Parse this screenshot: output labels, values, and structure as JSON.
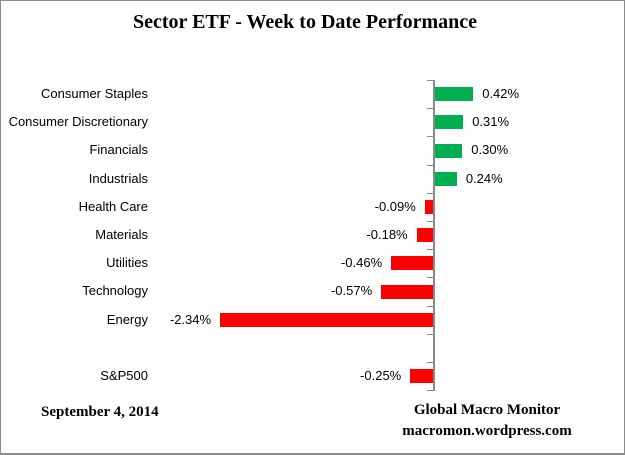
{
  "title": "Sector ETF - Week to Date Performance",
  "chart_data": {
    "type": "bar",
    "orientation": "horizontal",
    "title": "Sector ETF - Week to Date Performance",
    "categories": [
      "Consumer Staples",
      "Consumer Discretionary",
      "Financials",
      "Industrials",
      "Health Care",
      "Materials",
      "Utilities",
      "Technology",
      "Energy",
      "",
      "S&P500"
    ],
    "values": [
      0.42,
      0.31,
      0.3,
      0.24,
      -0.09,
      -0.18,
      -0.46,
      -0.57,
      -2.34,
      null,
      -0.25
    ],
    "value_labels": [
      "0.42%",
      "0.31%",
      "0.30%",
      "0.24%",
      "-0.09%",
      "-0.18%",
      "-0.46%",
      "-0.57%",
      "-2.34%",
      "",
      "-0.25%"
    ],
    "unit": "%",
    "baseline": 0,
    "gridlines": false,
    "legend": "none",
    "colors": {
      "positive": "#00B050",
      "negative": "#FF0000",
      "axis": "#898989"
    }
  },
  "footer": {
    "date": "September 4, 2014",
    "source_line1": "Global Macro Monitor",
    "source_line2": "macromon.wordpress.com"
  }
}
